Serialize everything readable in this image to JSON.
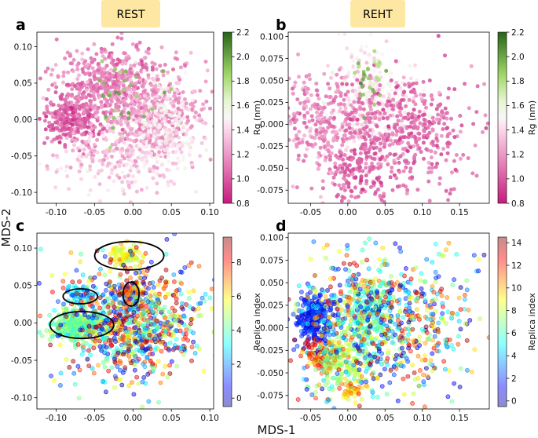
{
  "figure": {
    "shared_xlabel": "MDS-1",
    "shared_ylabel": "MDS-2",
    "tag_color": "#fde7a2",
    "header_tags": [
      "REST",
      "REHT"
    ]
  },
  "chart_data": [
    {
      "panel": "a",
      "type": "scatter",
      "title": "REST",
      "color_by": "Rg (nm)",
      "colormap": "PiYG",
      "colorbar": {
        "label": "Rg (nm)",
        "range": [
          0.8,
          2.2
        ],
        "ticks": [
          "2.2",
          "2.0",
          "1.8",
          "1.6",
          "1.4",
          "1.2",
          "1.0",
          "0.8"
        ]
      },
      "xlim": [
        -0.125,
        0.105
      ],
      "ylim": [
        -0.115,
        0.12
      ],
      "xticks": [
        "-0.10",
        "-0.05",
        "0.00",
        "0.05",
        "0.10"
      ],
      "yticks": [
        "0.10",
        "0.05",
        "0.00",
        "-0.05",
        "-0.10"
      ],
      "clusters": [
        {
          "center": [
            -0.08,
            0.0
          ],
          "spread": [
            0.018,
            0.018
          ],
          "n": 260,
          "value": 1.0
        },
        {
          "center": [
            -0.03,
            0.05
          ],
          "spread": [
            0.035,
            0.025
          ],
          "n": 450,
          "value": 1.1
        },
        {
          "center": [
            0.02,
            0.0
          ],
          "spread": [
            0.04,
            0.035
          ],
          "n": 500,
          "value": 1.2
        },
        {
          "center": [
            0.04,
            -0.02
          ],
          "spread": [
            0.025,
            0.03
          ],
          "n": 200,
          "value": 1.45
        },
        {
          "center": [
            -0.03,
            -0.055
          ],
          "spread": [
            0.035,
            0.025
          ],
          "n": 160,
          "value": 1.35
        },
        {
          "center": [
            -0.01,
            0.03
          ],
          "spread": [
            0.02,
            0.02
          ],
          "n": 30,
          "value": 1.9
        }
      ]
    },
    {
      "panel": "b",
      "type": "scatter",
      "title": "REHT",
      "color_by": "Rg (nm)",
      "colormap": "PiYG",
      "colorbar": {
        "label": "Rg (nm)",
        "range": [
          0.8,
          2.2
        ],
        "ticks": [
          "2.2",
          "2.0",
          "1.8",
          "1.6",
          "1.4",
          "1.2",
          "1.0",
          "0.8"
        ]
      },
      "xlim": [
        -0.08,
        0.19
      ],
      "ylim": [
        -0.09,
        0.105
      ],
      "xticks": [
        "-0.05",
        "0.00",
        "0.05",
        "0.10",
        "0.15"
      ],
      "yticks": [
        "0.100",
        "0.075",
        "0.050",
        "0.025",
        "0.000",
        "-0.025",
        "-0.050",
        "-0.075"
      ],
      "clusters": [
        {
          "center": [
            0.03,
            0.03
          ],
          "spread": [
            0.03,
            0.03
          ],
          "n": 300,
          "value": 1.45
        },
        {
          "center": [
            -0.03,
            0.0
          ],
          "spread": [
            0.03,
            0.03
          ],
          "n": 300,
          "value": 1.15
        },
        {
          "center": [
            0.07,
            -0.01
          ],
          "spread": [
            0.05,
            0.035
          ],
          "n": 500,
          "value": 1.05
        },
        {
          "center": [
            0.01,
            -0.06
          ],
          "spread": [
            0.02,
            0.015
          ],
          "n": 100,
          "value": 1.0
        },
        {
          "center": [
            0.03,
            0.05
          ],
          "spread": [
            0.01,
            0.02
          ],
          "n": 30,
          "value": 1.9
        }
      ]
    },
    {
      "panel": "c",
      "type": "scatter",
      "color_by": "Replica index",
      "colormap": "jet",
      "colorbar": {
        "label": "Replica index",
        "range": [
          -0.5,
          9.5
        ],
        "ticks": [
          "8",
          "6",
          "4",
          "2",
          "0"
        ]
      },
      "xlim": [
        -0.125,
        0.105
      ],
      "ylim": [
        -0.115,
        0.12
      ],
      "xticks": [
        "-0.10",
        "-0.05",
        "0.00",
        "0.05",
        "0.10"
      ],
      "yticks": [
        "0.10",
        "0.05",
        "0.00",
        "-0.05",
        "-0.10"
      ],
      "clusters": [
        {
          "center": [
            -0.07,
            -0.002
          ],
          "spread": [
            0.018,
            0.01
          ],
          "n": 350,
          "value": 4.2
        },
        {
          "center": [
            -0.01,
            0.09
          ],
          "spread": [
            0.012,
            0.007
          ],
          "n": 80,
          "value": 5.5
        },
        {
          "center": [
            -0.07,
            0.04
          ],
          "spread": [
            0.01,
            0.006
          ],
          "n": 50,
          "value": 2.5
        },
        {
          "center": [
            0.0,
            0.042
          ],
          "spread": [
            0.008,
            0.007
          ],
          "n": 60,
          "value": 7.3
        },
        {
          "center": [
            0.0,
            0.0
          ],
          "spread": [
            0.045,
            0.04
          ],
          "n": 900,
          "value": null
        }
      ],
      "highlight_ellipses": [
        {
          "center": [
            -0.0048,
            0.0898
          ],
          "radii": [
            0.045,
            0.019
          ]
        },
        {
          "center": [
            -0.0685,
            0.0355
          ],
          "radii": [
            0.0225,
            0.01
          ]
        },
        {
          "center": [
            -0.0025,
            0.0385
          ],
          "radii": [
            0.0105,
            0.016
          ]
        },
        {
          "center": [
            -0.0665,
            -0.0028
          ],
          "radii": [
            0.0415,
            0.018
          ]
        }
      ]
    },
    {
      "panel": "d",
      "type": "scatter",
      "color_by": "Replica index",
      "colormap": "jet",
      "colorbar": {
        "label": "Replica index",
        "range": [
          -0.5,
          14.5
        ],
        "ticks": [
          "14",
          "12",
          "10",
          "8",
          "6",
          "4",
          "2",
          "0"
        ]
      },
      "xlim": [
        -0.08,
        0.19
      ],
      "ylim": [
        -0.09,
        0.105
      ],
      "xticks": [
        "-0.05",
        "0.00",
        "0.05",
        "0.10",
        "0.15"
      ],
      "yticks": [
        "0.100",
        "0.075",
        "0.050",
        "0.025",
        "0.000",
        "-0.025",
        "-0.050",
        "-0.075"
      ],
      "clusters": [
        {
          "center": [
            -0.045,
            0.01
          ],
          "spread": [
            0.012,
            0.015
          ],
          "n": 250,
          "value": 1.5
        },
        {
          "center": [
            -0.035,
            -0.03
          ],
          "spread": [
            0.01,
            0.01
          ],
          "n": 80,
          "value": 12.5
        },
        {
          "center": [
            0.005,
            -0.07
          ],
          "spread": [
            0.008,
            0.006
          ],
          "n": 40,
          "value": 9.5
        },
        {
          "center": [
            0.03,
            0.02
          ],
          "spread": [
            0.02,
            0.02
          ],
          "n": 200,
          "value": 6.0
        },
        {
          "center": [
            -0.01,
            -0.04
          ],
          "spread": [
            0.02,
            0.015
          ],
          "n": 150,
          "value": 7.5
        },
        {
          "center": [
            0.04,
            0.0
          ],
          "spread": [
            0.06,
            0.04
          ],
          "n": 800,
          "value": null
        }
      ]
    }
  ]
}
